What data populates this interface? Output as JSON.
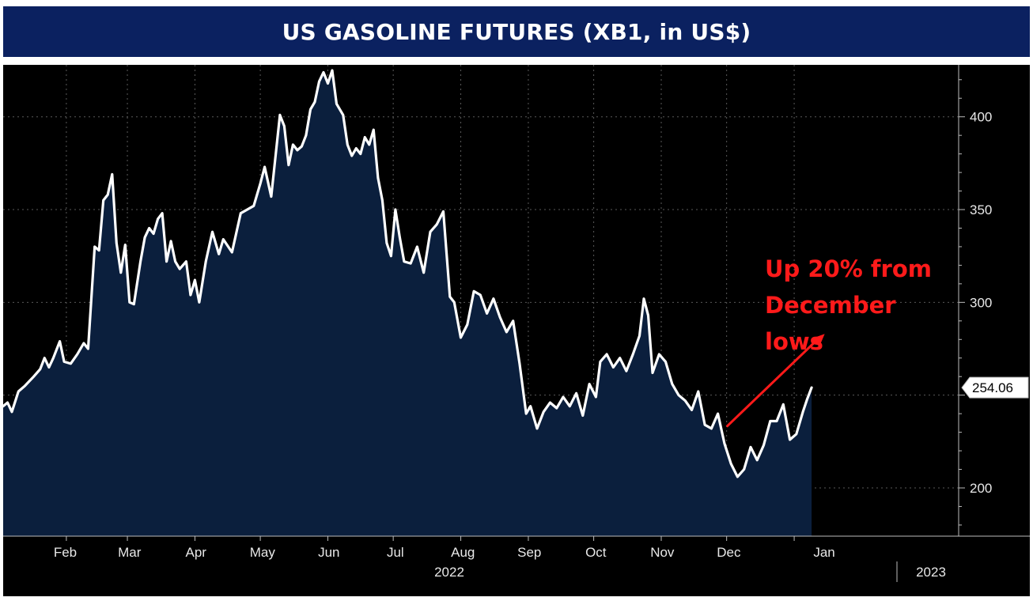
{
  "title": "US GASOLINE FUTURES (XB1, in US$)",
  "colors": {
    "title_bg": "#0b2160",
    "plot_bg": "#000000",
    "area_fill": "#0b1f3d",
    "line": "#ffffff",
    "annotation": "#ff1a1a"
  },
  "chart_data": {
    "type": "area",
    "title": "US GASOLINE FUTURES (XB1, in US$)",
    "xlabel": "",
    "ylabel": "",
    "ylim": [
      174,
      428
    ],
    "yticks": [
      200,
      250,
      300,
      350,
      400
    ],
    "ytick_labels": [
      "200",
      "",
      "300",
      "350",
      "400"
    ],
    "grid": true,
    "last_value_label": "254.06",
    "x_month_labels": [
      "Feb",
      "Mar",
      "Apr",
      "May",
      "Jun",
      "Jul",
      "Aug",
      "Sep",
      "Oct",
      "Nov",
      "Dec",
      "Jan"
    ],
    "x_year_labels": [
      "2022",
      "2023"
    ],
    "annotation": {
      "lines": [
        "Up 20% from",
        "December",
        "lows"
      ],
      "arrow_from": [
        "2022-12-01",
        233
      ],
      "arrow_to": [
        "2023-01-15",
        283
      ]
    },
    "series": [
      {
        "values": [
          [
            "2022-01-03",
            244
          ],
          [
            "2022-01-05",
            246
          ],
          [
            "2022-01-07",
            241
          ],
          [
            "2022-01-10",
            252
          ],
          [
            "2022-01-13",
            255
          ],
          [
            "2022-01-17",
            260
          ],
          [
            "2022-01-20",
            264
          ],
          [
            "2022-01-22",
            270
          ],
          [
            "2022-01-24",
            265
          ],
          [
            "2022-01-26",
            270
          ],
          [
            "2022-01-29",
            279
          ],
          [
            "2022-01-31",
            268
          ],
          [
            "2022-02-03",
            267
          ],
          [
            "2022-02-06",
            272
          ],
          [
            "2022-02-09",
            278
          ],
          [
            "2022-02-11",
            275
          ],
          [
            "2022-02-14",
            330
          ],
          [
            "2022-02-16",
            328
          ],
          [
            "2022-02-18",
            355
          ],
          [
            "2022-02-20",
            358
          ],
          [
            "2022-02-22",
            369
          ],
          [
            "2022-02-24",
            332
          ],
          [
            "2022-02-26",
            316
          ],
          [
            "2022-02-28",
            331
          ],
          [
            "2022-03-02",
            300
          ],
          [
            "2022-03-04",
            299
          ],
          [
            "2022-03-07",
            322
          ],
          [
            "2022-03-09",
            335
          ],
          [
            "2022-03-11",
            340
          ],
          [
            "2022-03-13",
            337
          ],
          [
            "2022-03-15",
            345
          ],
          [
            "2022-03-17",
            348
          ],
          [
            "2022-03-19",
            322
          ],
          [
            "2022-03-21",
            333
          ],
          [
            "2022-03-23",
            322
          ],
          [
            "2022-03-25",
            318
          ],
          [
            "2022-03-28",
            322
          ],
          [
            "2022-03-30",
            304
          ],
          [
            "2022-04-01",
            312
          ],
          [
            "2022-04-03",
            300
          ],
          [
            "2022-04-06",
            322
          ],
          [
            "2022-04-09",
            338
          ],
          [
            "2022-04-12",
            326
          ],
          [
            "2022-04-14",
            334
          ],
          [
            "2022-04-18",
            327
          ],
          [
            "2022-04-22",
            348
          ],
          [
            "2022-04-25",
            350
          ],
          [
            "2022-04-28",
            352
          ],
          [
            "2022-05-01",
            364
          ],
          [
            "2022-05-03",
            373
          ],
          [
            "2022-05-06",
            357
          ],
          [
            "2022-05-08",
            379
          ],
          [
            "2022-05-10",
            401
          ],
          [
            "2022-05-12",
            395
          ],
          [
            "2022-05-14",
            374
          ],
          [
            "2022-05-16",
            385
          ],
          [
            "2022-05-18",
            382
          ],
          [
            "2022-05-20",
            384
          ],
          [
            "2022-05-22",
            390
          ],
          [
            "2022-05-24",
            404
          ],
          [
            "2022-05-26",
            408
          ],
          [
            "2022-05-28",
            419
          ],
          [
            "2022-05-30",
            424
          ],
          [
            "2022-06-01",
            418
          ],
          [
            "2022-06-03",
            425
          ],
          [
            "2022-06-05",
            407
          ],
          [
            "2022-06-08",
            401
          ],
          [
            "2022-06-10",
            385
          ],
          [
            "2022-06-12",
            379
          ],
          [
            "2022-06-14",
            383
          ],
          [
            "2022-06-16",
            380
          ],
          [
            "2022-06-18",
            389
          ],
          [
            "2022-06-20",
            385
          ],
          [
            "2022-06-22",
            393
          ],
          [
            "2022-06-24",
            367
          ],
          [
            "2022-06-26",
            355
          ],
          [
            "2022-06-28",
            332
          ],
          [
            "2022-06-30",
            325
          ],
          [
            "2022-07-02",
            350
          ],
          [
            "2022-07-04",
            335
          ],
          [
            "2022-07-06",
            322
          ],
          [
            "2022-07-09",
            321
          ],
          [
            "2022-07-12",
            330
          ],
          [
            "2022-07-15",
            316
          ],
          [
            "2022-07-18",
            338
          ],
          [
            "2022-07-21",
            342
          ],
          [
            "2022-07-24",
            349
          ],
          [
            "2022-07-27",
            303
          ],
          [
            "2022-07-29",
            300
          ],
          [
            "2022-08-01",
            281
          ],
          [
            "2022-08-04",
            288
          ],
          [
            "2022-08-07",
            306
          ],
          [
            "2022-08-10",
            304
          ],
          [
            "2022-08-13",
            294
          ],
          [
            "2022-08-16",
            302
          ],
          [
            "2022-08-19",
            292
          ],
          [
            "2022-08-22",
            284
          ],
          [
            "2022-08-25",
            290
          ],
          [
            "2022-08-28",
            267
          ],
          [
            "2022-08-31",
            240
          ],
          [
            "2022-09-02",
            244
          ],
          [
            "2022-09-05",
            232
          ],
          [
            "2022-09-08",
            241
          ],
          [
            "2022-09-11",
            246
          ],
          [
            "2022-09-14",
            243
          ],
          [
            "2022-09-17",
            249
          ],
          [
            "2022-09-20",
            244
          ],
          [
            "2022-09-23",
            251
          ],
          [
            "2022-09-26",
            239
          ],
          [
            "2022-09-29",
            256
          ],
          [
            "2022-10-02",
            249
          ],
          [
            "2022-10-04",
            268
          ],
          [
            "2022-10-07",
            272
          ],
          [
            "2022-10-10",
            265
          ],
          [
            "2022-10-13",
            270
          ],
          [
            "2022-10-16",
            263
          ],
          [
            "2022-10-19",
            272
          ],
          [
            "2022-10-22",
            282
          ],
          [
            "2022-10-24",
            302
          ],
          [
            "2022-10-26",
            293
          ],
          [
            "2022-10-28",
            262
          ],
          [
            "2022-10-31",
            272
          ],
          [
            "2022-11-03",
            268
          ],
          [
            "2022-11-06",
            256
          ],
          [
            "2022-11-09",
            250
          ],
          [
            "2022-11-12",
            247
          ],
          [
            "2022-11-15",
            242
          ],
          [
            "2022-11-18",
            252
          ],
          [
            "2022-11-21",
            234
          ],
          [
            "2022-11-24",
            232
          ],
          [
            "2022-11-27",
            240
          ],
          [
            "2022-11-30",
            224
          ],
          [
            "2022-12-03",
            213
          ],
          [
            "2022-12-06",
            206
          ],
          [
            "2022-12-09",
            210
          ],
          [
            "2022-12-12",
            222
          ],
          [
            "2022-12-15",
            215
          ],
          [
            "2022-12-18",
            223
          ],
          [
            "2022-12-21",
            236
          ],
          [
            "2022-12-24",
            236
          ],
          [
            "2022-12-27",
            245
          ],
          [
            "2022-12-30",
            226
          ],
          [
            "2023-01-02",
            229
          ],
          [
            "2023-01-05",
            241
          ],
          [
            "2023-01-07",
            248
          ],
          [
            "2023-01-09",
            254.06
          ]
        ]
      }
    ]
  }
}
